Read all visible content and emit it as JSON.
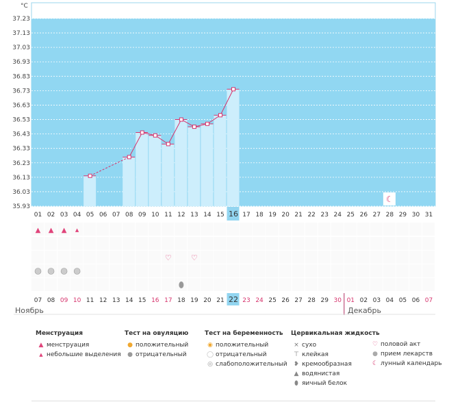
{
  "unit_label": "°C",
  "y_ticks": [
    "37.23",
    "37.13",
    "37.03",
    "36.93",
    "36.83",
    "36.73",
    "36.63",
    "36.53",
    "36.43",
    "36.33",
    "36.23",
    "36.13",
    "36.03",
    "35.93"
  ],
  "cycle_days": [
    "01",
    "02",
    "03",
    "04",
    "05",
    "06",
    "07",
    "08",
    "09",
    "10",
    "11",
    "12",
    "13",
    "14",
    "15",
    "16",
    "17",
    "18",
    "19",
    "20",
    "21",
    "22",
    "23",
    "24",
    "25",
    "26",
    "27",
    "28",
    "29",
    "30",
    "31"
  ],
  "current_day": "16",
  "dates": [
    {
      "d": "07",
      "red": false
    },
    {
      "d": "08",
      "red": false
    },
    {
      "d": "09",
      "red": true
    },
    {
      "d": "10",
      "red": true
    },
    {
      "d": "11",
      "red": false
    },
    {
      "d": "12",
      "red": false
    },
    {
      "d": "13",
      "red": false
    },
    {
      "d": "14",
      "red": false
    },
    {
      "d": "15",
      "red": false
    },
    {
      "d": "16",
      "red": true
    },
    {
      "d": "17",
      "red": true
    },
    {
      "d": "18",
      "red": false
    },
    {
      "d": "19",
      "red": false
    },
    {
      "d": "20",
      "red": false
    },
    {
      "d": "21",
      "red": false
    },
    {
      "d": "22",
      "red": false,
      "current": true
    },
    {
      "d": "23",
      "red": true
    },
    {
      "d": "24",
      "red": true
    },
    {
      "d": "25",
      "red": false
    },
    {
      "d": "26",
      "red": false
    },
    {
      "d": "27",
      "red": false
    },
    {
      "d": "28",
      "red": false
    },
    {
      "d": "29",
      "red": false
    },
    {
      "d": "30",
      "red": true
    },
    {
      "d": "01",
      "red": true
    },
    {
      "d": "02",
      "red": false
    },
    {
      "d": "03",
      "red": false
    },
    {
      "d": "04",
      "red": false
    },
    {
      "d": "05",
      "red": false
    },
    {
      "d": "06",
      "red": false
    },
    {
      "d": "07",
      "red": true
    }
  ],
  "month_left": "Ноябрь",
  "month_right": "Декабрь",
  "colors": {
    "plot_bg": "#91d7f2",
    "bar": "#cdeefc",
    "line": "#d6336c",
    "current": "#92d5f0",
    "red_text": "#d6336c"
  },
  "chart_data": {
    "type": "line",
    "ylim": [
      35.93,
      37.23
    ],
    "x": [
      5,
      8,
      9,
      10,
      11,
      12,
      13,
      14,
      15,
      16
    ],
    "y": [
      36.14,
      36.27,
      36.44,
      36.42,
      36.36,
      36.53,
      36.48,
      36.5,
      36.56,
      36.74
    ],
    "dashed_segment": [
      5,
      8
    ]
  },
  "moon_day": 28,
  "marks": {
    "menstruation_days": [
      1,
      2,
      3
    ],
    "light_bleeding_days": [
      4
    ],
    "intercourse_days": [
      11,
      13
    ],
    "ovulation_negative_days": [
      1,
      2,
      3,
      4
    ],
    "egg_white_days": [
      12
    ]
  },
  "legend": {
    "menstruation": {
      "title": "Менструация",
      "items": [
        {
          "icon": "drop-big",
          "label": "менструация"
        },
        {
          "icon": "drop-small",
          "label": "небольшие выделения"
        }
      ]
    },
    "ovulation": {
      "title": "Тест на овуляцию",
      "items": [
        {
          "icon": "test-positive",
          "label": "положительный"
        },
        {
          "icon": "test-negative",
          "label": "отрицательный"
        }
      ]
    },
    "pregnancy": {
      "title": "Тест на беременность",
      "items": [
        {
          "icon": "preg-positive",
          "label": "положительный"
        },
        {
          "icon": "preg-negative",
          "label": "отрицательный"
        },
        {
          "icon": "preg-weak",
          "label": "слабоположительный"
        }
      ]
    },
    "cervical": {
      "title": "Цервикальная жидкость",
      "items": [
        {
          "icon": "dry",
          "label": "сухо"
        },
        {
          "icon": "sticky",
          "label": "клейкая"
        },
        {
          "icon": "creamy",
          "label": "кремообразная"
        },
        {
          "icon": "watery",
          "label": "водянистая"
        },
        {
          "icon": "eggwhite",
          "label": "яичный белок"
        }
      ]
    },
    "other": {
      "items": [
        {
          "icon": "heart",
          "label": "половой акт"
        },
        {
          "icon": "pill",
          "label": "прием лекарств"
        },
        {
          "icon": "moon",
          "label": "лунный календарь"
        }
      ]
    }
  }
}
